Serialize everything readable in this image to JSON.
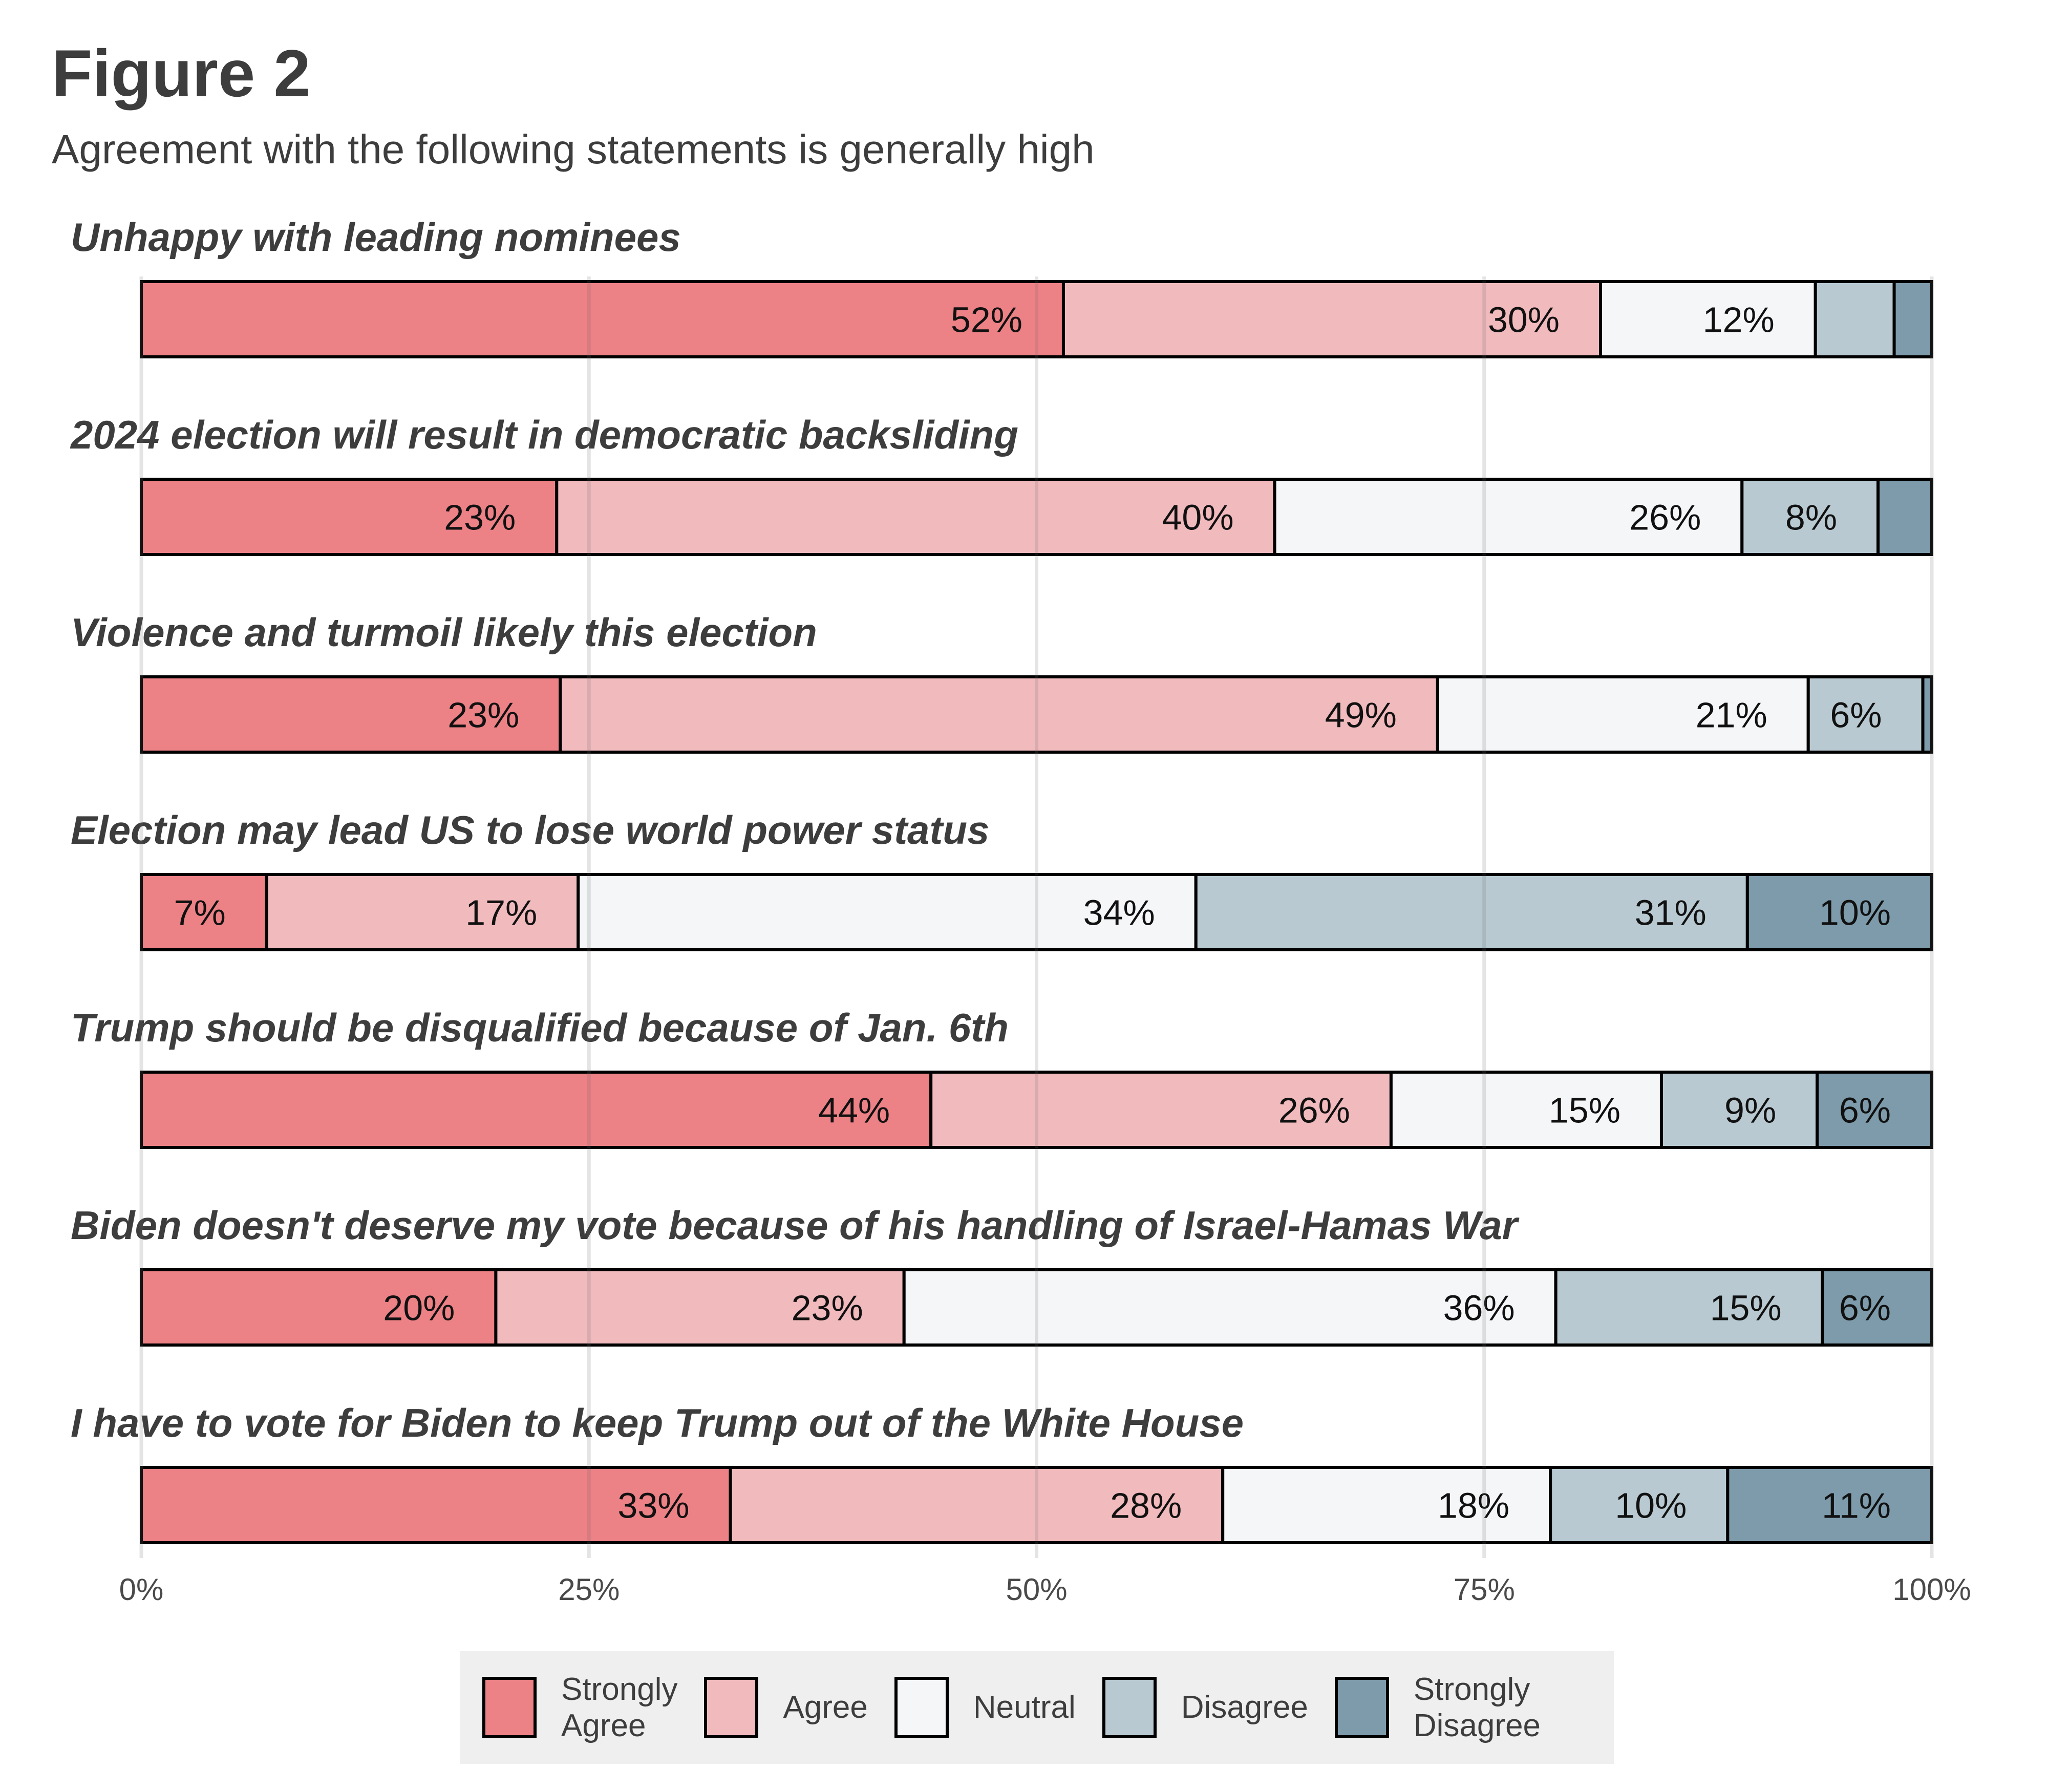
{
  "title": "Figure 2",
  "subtitle": "Agreement with the following statements is generally high",
  "chart_data": {
    "type": "bar",
    "orientation": "horizontal-stacked-100",
    "xlim": [
      0,
      100
    ],
    "ticks": [
      "0%",
      "25%",
      "50%",
      "75%",
      "100%"
    ],
    "grid": true,
    "legend_position": "bottom",
    "series": [
      {
        "name": "Strongly Agree",
        "color": "#ec8186"
      },
      {
        "name": "Agree",
        "color": "#f1babd"
      },
      {
        "name": "Neutral",
        "color": "#f5f6f8"
      },
      {
        "name": "Disagree",
        "color": "#b8c9d1"
      },
      {
        "name": "Strongly Disagree",
        "color": "#7d9bab"
      }
    ],
    "rows": [
      {
        "statement": "Unhappy with leading nominees",
        "values": [
          51.5,
          30,
          12,
          4.4,
          2.1
        ],
        "labels": [
          "52%",
          "30%",
          "12%",
          "",
          ""
        ]
      },
      {
        "statement": "2024 election will result in democratic backsliding",
        "values": [
          23.2,
          40.1,
          26.1,
          7.6,
          3.0
        ],
        "labels": [
          "23%",
          "40%",
          "26%",
          "8%",
          ""
        ]
      },
      {
        "statement": "Violence and turmoil likely this election",
        "values": [
          23.4,
          49.0,
          20.7,
          6.4,
          0.5
        ],
        "labels": [
          "23%",
          "49%",
          "21%",
          "6%",
          ""
        ]
      },
      {
        "statement": "Election may lead US to lose world power status",
        "values": [
          7.0,
          17.4,
          34.5,
          30.8,
          10.3
        ],
        "labels": [
          "7%",
          "17%",
          "34%",
          "31%",
          "10%"
        ]
      },
      {
        "statement": "Trump should be disqualified because of Jan. 6th",
        "values": [
          44.1,
          25.7,
          15.1,
          8.7,
          6.4
        ],
        "labels": [
          "44%",
          "26%",
          "15%",
          "9%",
          "6%"
        ]
      },
      {
        "statement": "Biden doesn't deserve my vote because of his handling of Israel-Hamas War",
        "values": [
          19.8,
          22.8,
          36.4,
          14.9,
          6.1
        ],
        "labels": [
          "20%",
          "23%",
          "36%",
          "15%",
          "6%"
        ]
      },
      {
        "statement": "I have to vote for Biden to keep Trump out of the White House",
        "values": [
          32.9,
          27.5,
          18.3,
          9.9,
          11.4
        ],
        "labels": [
          "33%",
          "28%",
          "18%",
          "10%",
          "11%"
        ]
      }
    ]
  },
  "legend": {
    "items": [
      {
        "label": "Strongly\nAgree",
        "color": "#ec8186"
      },
      {
        "label": "Agree",
        "color": "#f1babd"
      },
      {
        "label": "Neutral",
        "color": "#f5f6f8"
      },
      {
        "label": "Disagree",
        "color": "#b8c9d1"
      },
      {
        "label": "Strongly\nDisagree",
        "color": "#7d9bab"
      }
    ]
  }
}
